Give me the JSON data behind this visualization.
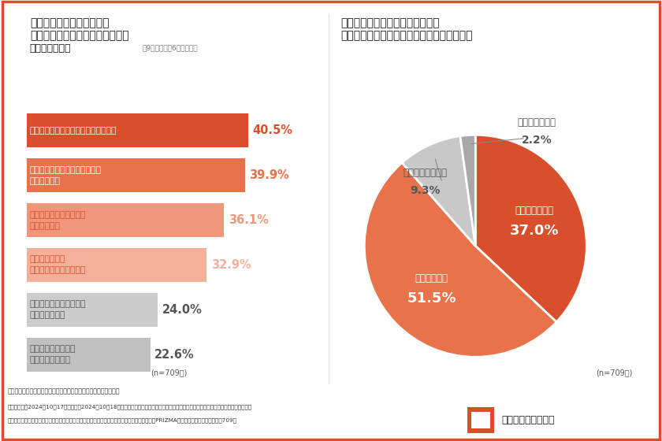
{
  "bar_title_line1": "近年の顧客のニーズには、",
  "bar_title_line2": "どのような変化が見られますか？",
  "bar_title_line3": "（複数回答可）",
  "bar_subtitle": "全9項目中上位6項目を抜粋",
  "bar_categories": [
    "耐震性や安全性の要求が高まっている",
    "コストパフォーマンスの要求が\n高まっている",
    "デザインへのこだわりが\n強まっている",
    "環境配慮が重視\nされるようになっている",
    "メンテナンスの容易さが\n重視されている",
    "バリアフリーがより\n重要視されている"
  ],
  "bar_values": [
    40.5,
    39.9,
    36.1,
    32.9,
    24.0,
    22.6
  ],
  "bar_colors": [
    "#D94F2B",
    "#E8724A",
    "#F0967A",
    "#F5B09A",
    "#CCCCCC",
    "#C0C0C0"
  ],
  "bar_label_text_colors": [
    "#FFFFFF",
    "#FFFFFF",
    "#D94F2B",
    "#D94F2B",
    "#555555",
    "#555555"
  ],
  "bar_value_colors": [
    "#D94F2B",
    "#E8724A",
    "#F0967A",
    "#F5B09A",
    "#555555",
    "#555555"
  ],
  "pie_title_line1": "これらのニーズに応えるために、",
  "pie_title_line2": "新たなスキルや知識の習得をしていますか？",
  "pie_labels_display": [
    "とてもしている",
    "ややしている",
    "あまりしていない",
    "全くしていない"
  ],
  "pie_values": [
    37.0,
    51.5,
    9.3,
    2.2
  ],
  "pie_colors": [
    "#D94F2B",
    "#E8724A",
    "#C8C8C8",
    "#A8A8A8"
  ],
  "pie_text_colors": [
    "#FFFFFF",
    "#FFFFFF",
    "#555555",
    "#555555"
  ],
  "sample_size": "(n=709人)",
  "footer_line1": "《調査概要：「デザインイメージの共有方法」に関する実態調査》",
  "footer_line2": "・調査期間：2024年10月17日（木）～2024年10月18日（金）　・調査方法：インターネット調査　・調査元：株式会社建築家コミュニティ",
  "footer_line3": "・調査対象：調査回答時に設計事務所に勤める建築士と回答したモニター　・モニター提供元：PRIZMAリサーチ　　　・調査人数：709人",
  "brand_name": "建築家コミュニティ",
  "border_color": "#D94F2B",
  "bg_color": "#FFFFFF"
}
